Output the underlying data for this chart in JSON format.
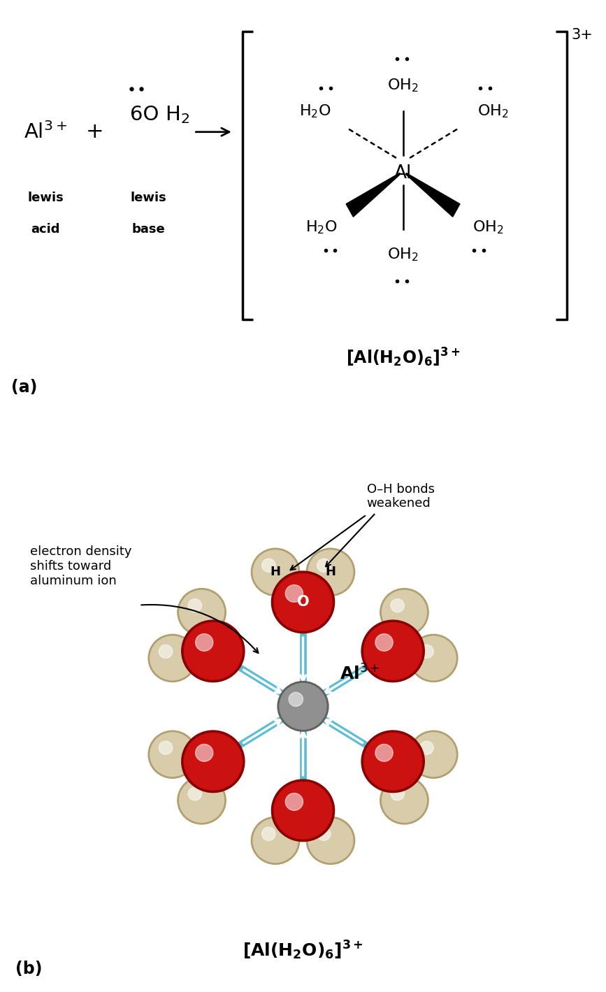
{
  "background_color": "#ffffff",
  "panel_a": {
    "label": "(a)",
    "bracket_charge": "3+",
    "complex_label": "[Al(H$_2$O)$_6$]$^{3+}$"
  },
  "panel_b": {
    "label": "(b)",
    "al_color_center": "#909090",
    "al_color_edge": "#606060",
    "o_color_center": "#cc1111",
    "o_color_edge": "#880000",
    "h_color_center": "#d8ccaa",
    "h_color_edge": "#b0a070",
    "bond_blue": "#5bbdd4",
    "al_label": "Al$^{3+}$",
    "o_label": "O",
    "h_label": "H",
    "annotation1": "O–H bonds\nweakened",
    "annotation2": "electron density\nshifts toward\naluminum ion",
    "complex_label": "[Al(H$_2$O)$_6$]$^{3+}$"
  }
}
